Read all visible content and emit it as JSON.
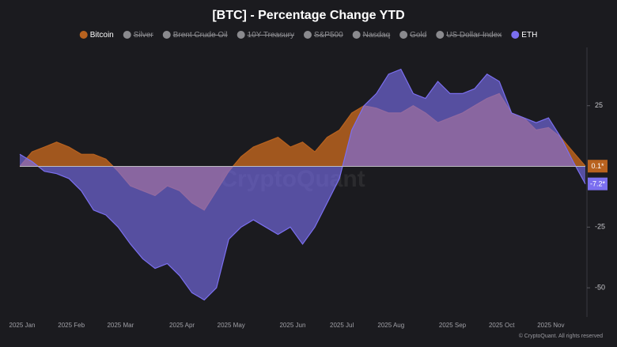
{
  "chart_data": {
    "type": "area",
    "title": "[BTC] - Percentage Change YTD",
    "watermark": "CryptoQuant",
    "footer": "© CryptoQuant. All rights reserved",
    "categories": [
      "2025 Jan",
      null,
      null,
      null,
      "2025 Feb",
      null,
      null,
      null,
      "2025 Mar",
      null,
      null,
      null,
      null,
      "2025 Apr",
      null,
      null,
      null,
      "2025 May",
      null,
      null,
      null,
      null,
      "2025 Jun",
      null,
      null,
      null,
      "2025 Jul",
      null,
      null,
      null,
      "2025 Aug",
      null,
      null,
      null,
      null,
      "2025 Sep",
      null,
      null,
      null,
      "2025 Oct",
      null,
      null,
      null,
      "2025 Nov",
      null,
      null,
      null
    ],
    "ylim": [
      -62,
      49
    ],
    "yticks": [
      -50,
      -25,
      25
    ],
    "grid": false,
    "series": [
      {
        "name": "Bitcoin",
        "color": "#b8621f",
        "visible": true,
        "values": [
          0,
          6,
          8,
          10,
          8,
          5,
          5,
          3,
          -2,
          -8,
          -10,
          -12,
          -8,
          -10,
          -15,
          -18,
          -10,
          -2,
          4,
          8,
          10,
          12,
          8,
          10,
          6,
          12,
          15,
          22,
          25,
          24,
          22,
          22,
          25,
          22,
          18,
          20,
          22,
          25,
          28,
          30,
          22,
          20,
          15,
          16,
          12,
          6,
          0.1
        ],
        "value_labels": [
          null,
          null,
          null,
          null,
          null,
          null,
          null,
          null,
          null,
          null,
          null,
          null,
          null,
          null,
          null,
          null,
          null,
          null,
          null,
          null,
          null,
          null,
          null,
          null,
          null,
          null,
          null,
          null,
          null,
          null,
          null,
          null,
          null,
          null,
          null,
          null,
          null,
          null,
          null,
          null,
          null,
          null,
          null,
          null,
          null,
          null,
          "0.1*"
        ]
      },
      {
        "name": "Silver",
        "color": "#8a8a8e",
        "visible": false
      },
      {
        "name": "Brent Crude Oil",
        "color": "#8a8a8e",
        "visible": false
      },
      {
        "name": "10Y Treasury",
        "color": "#8a8a8e",
        "visible": false
      },
      {
        "name": "S&P500",
        "color": "#8a8a8e",
        "visible": false
      },
      {
        "name": "Nasdaq",
        "color": "#8a8a8e",
        "visible": false
      },
      {
        "name": "Gold",
        "color": "#8a8a8e",
        "visible": false
      },
      {
        "name": "US Dollar Index",
        "color": "#8a8a8e",
        "visible": false
      },
      {
        "name": "ETH",
        "color": "#7b6ff0",
        "visible": true,
        "values": [
          5,
          2,
          -2,
          -3,
          -5,
          -10,
          -18,
          -20,
          -25,
          -32,
          -38,
          -42,
          -40,
          -45,
          -52,
          -55,
          -50,
          -30,
          -25,
          -22,
          -25,
          -28,
          -25,
          -32,
          -25,
          -15,
          -5,
          15,
          25,
          30,
          38,
          40,
          30,
          28,
          35,
          30,
          30,
          32,
          38,
          35,
          22,
          20,
          18,
          20,
          12,
          2,
          -7.2
        ],
        "value_labels": [
          null,
          null,
          null,
          null,
          null,
          null,
          null,
          null,
          null,
          null,
          null,
          null,
          null,
          null,
          null,
          null,
          null,
          null,
          null,
          null,
          null,
          null,
          null,
          null,
          null,
          null,
          null,
          null,
          null,
          null,
          null,
          null,
          null,
          null,
          null,
          null,
          null,
          null,
          null,
          null,
          null,
          null,
          null,
          null,
          null,
          null,
          "-7.2*"
        ]
      }
    ]
  }
}
